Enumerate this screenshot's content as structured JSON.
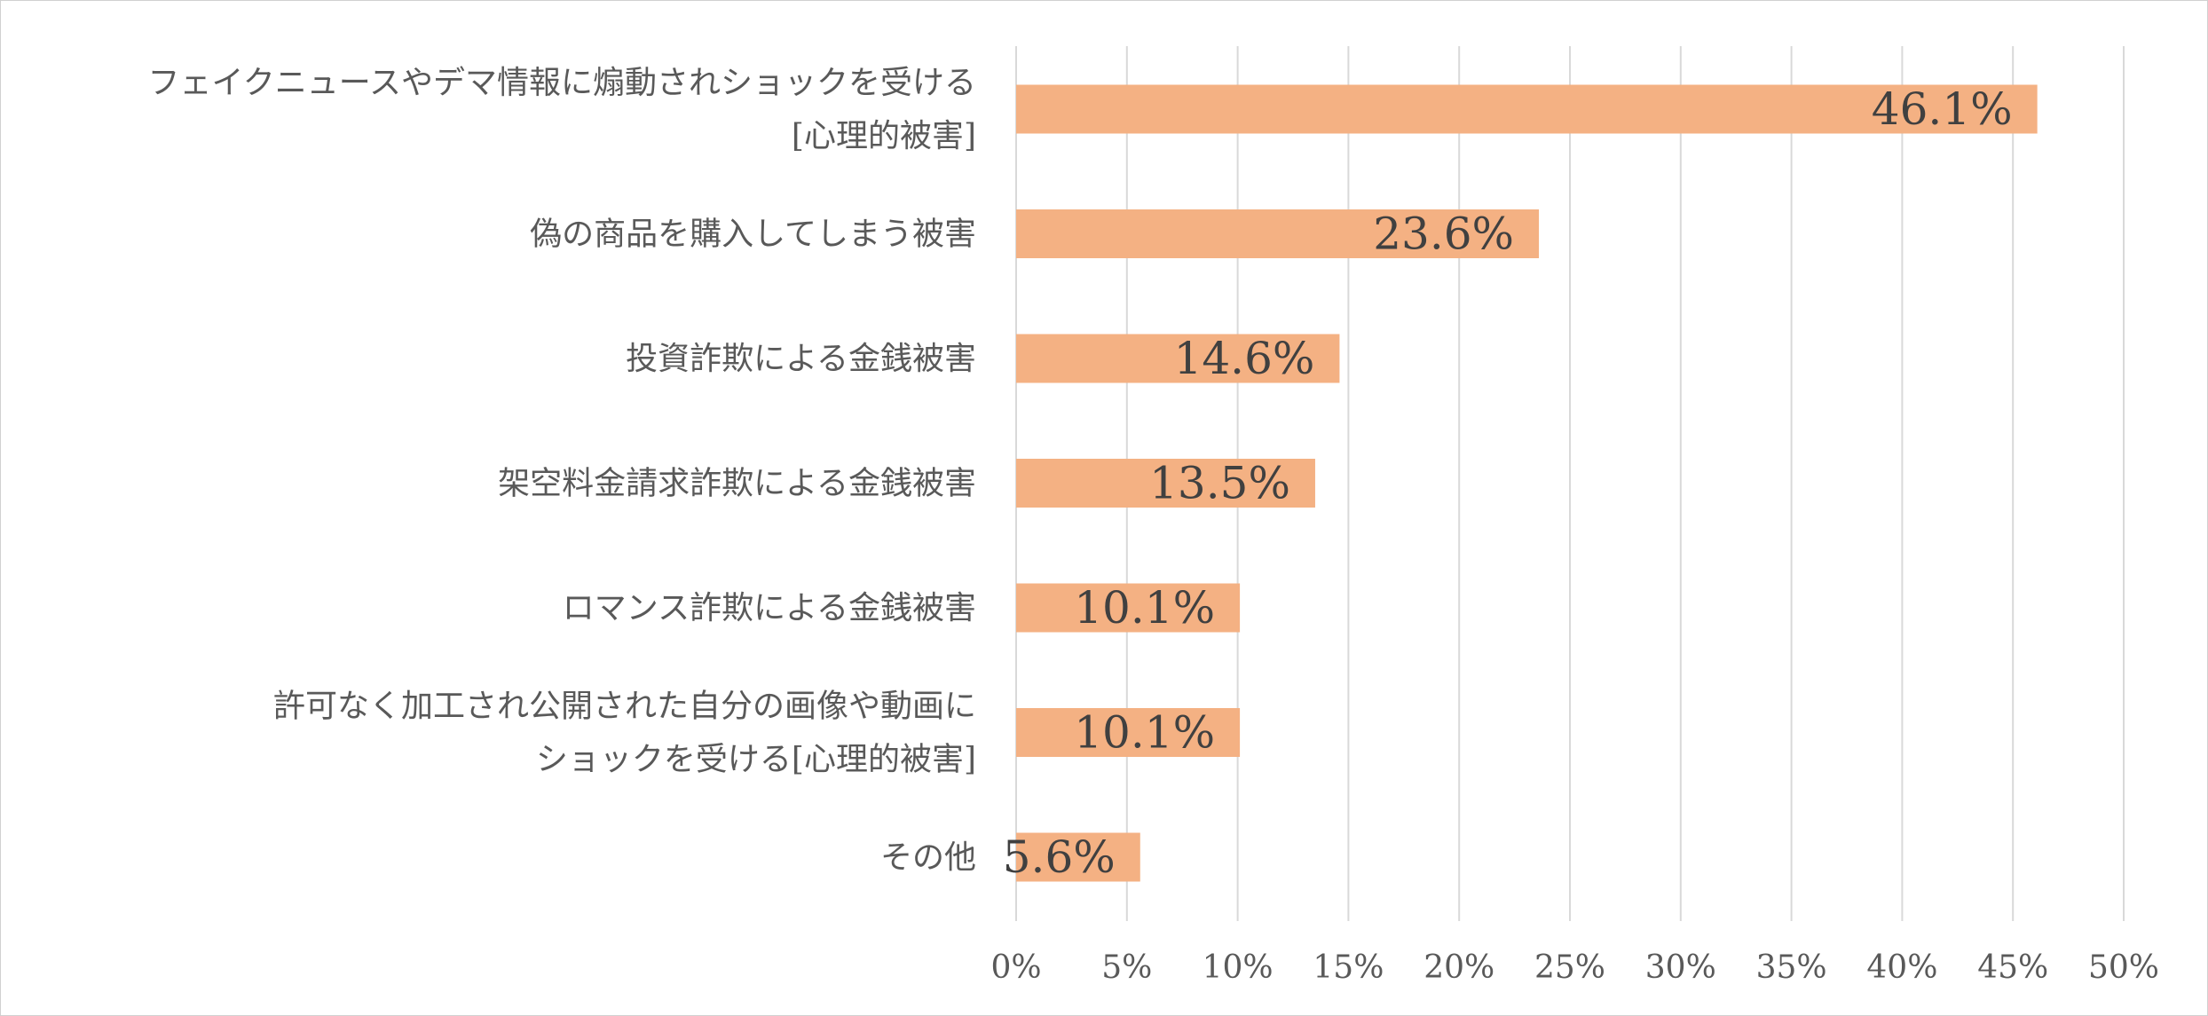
{
  "chart_data": {
    "type": "bar",
    "orientation": "horizontal",
    "title": "",
    "xlabel": "",
    "ylabel": "",
    "categories": [
      [
        "フェイクニュースやデマ情報に煽動されショックを受ける",
        "[心理的被害]"
      ],
      [
        "偽の商品を購入してしまう被害"
      ],
      [
        "投資詐欺による金銭被害"
      ],
      [
        "架空料金請求詐欺による金銭被害"
      ],
      [
        "ロマンス詐欺による金銭被害"
      ],
      [
        "許可なく加工され公開された自分の画像や動画に",
        "ショックを受ける[心理的被害]"
      ],
      [
        "その他"
      ]
    ],
    "values": [
      46.1,
      23.6,
      14.6,
      13.5,
      10.1,
      10.1,
      5.6
    ],
    "data_labels": [
      "46.1%",
      "23.6%",
      "14.6%",
      "13.5%",
      "10.1%",
      "10.1%",
      "5.6%"
    ],
    "xlim": [
      0,
      50
    ],
    "ticks": [
      0,
      5,
      10,
      15,
      20,
      25,
      30,
      35,
      40,
      45,
      50
    ],
    "tick_labels": [
      "0%",
      "5%",
      "10%",
      "15%",
      "20%",
      "25%",
      "30%",
      "35%",
      "40%",
      "45%",
      "50%"
    ],
    "grid": true,
    "legend": "none",
    "colors": {
      "bar": "#F4B183",
      "grid": "#D9D9D9",
      "label_text": "#595959",
      "value_text": "#404040"
    }
  }
}
